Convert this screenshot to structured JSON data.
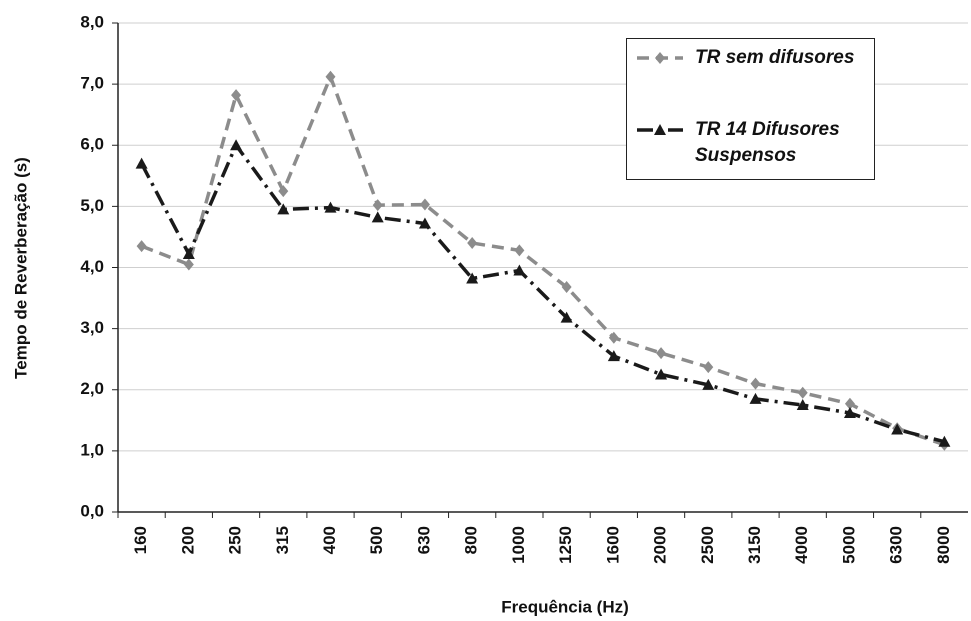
{
  "chart_data": {
    "type": "line",
    "x_label": "Frequência (Hz)",
    "y_label": "Tempo de Reverberação (s)",
    "categories": [
      "160",
      "200",
      "250",
      "315",
      "400",
      "500",
      "630",
      "800",
      "1000",
      "1250",
      "1600",
      "2000",
      "2500",
      "3150",
      "4000",
      "5000",
      "6300",
      "8000"
    ],
    "series": [
      {
        "name": "TR sem difusores",
        "color": "#8c8c8c",
        "marker": "diamond",
        "dash": "12 7",
        "values": [
          4.35,
          4.05,
          6.82,
          5.25,
          7.12,
          5.02,
          5.03,
          4.4,
          4.28,
          3.68,
          2.85,
          2.6,
          2.37,
          2.1,
          1.95,
          1.77,
          1.37,
          1.1
        ]
      },
      {
        "name": "TR 14 Difusores Suspensos",
        "color": "#1a1a1a",
        "marker": "triangle",
        "dash": "16 6 3 6",
        "values": [
          5.7,
          4.22,
          6.0,
          4.95,
          4.98,
          4.82,
          4.72,
          3.82,
          3.95,
          3.18,
          2.55,
          2.25,
          2.08,
          1.85,
          1.75,
          1.62,
          1.35,
          1.15
        ]
      }
    ],
    "ylim": [
      0,
      8
    ],
    "yticks": [
      {
        "value": 0,
        "label": "0,0"
      },
      {
        "value": 1,
        "label": "1,0"
      },
      {
        "value": 2,
        "label": "2,0"
      },
      {
        "value": 3,
        "label": "3,0"
      },
      {
        "value": 4,
        "label": "4,0"
      },
      {
        "value": 5,
        "label": "5,0"
      },
      {
        "value": 6,
        "label": "6,0"
      },
      {
        "value": 7,
        "label": "7,0"
      },
      {
        "value": 8,
        "label": "8,0"
      }
    ],
    "grid": true
  }
}
